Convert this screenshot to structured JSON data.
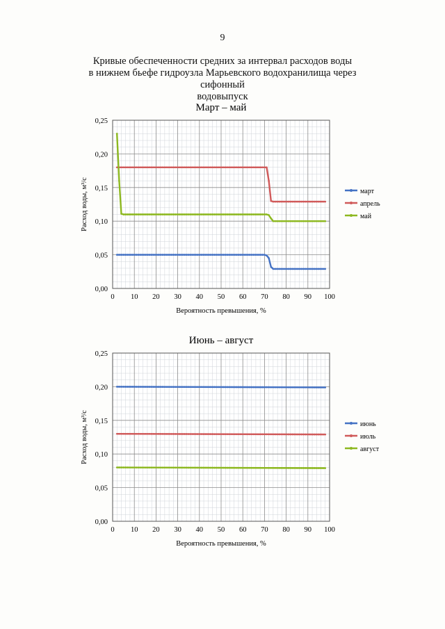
{
  "page_number": "9",
  "document_title": {
    "line1": "Кривые обеспеченности средних за интервал расходов воды",
    "line2": "в нижнем бьефе гидроузла Марьевского водохранилища через сифонный",
    "line3": "водовыпуск"
  },
  "chart_data": [
    {
      "type": "line",
      "title": "Март – май",
      "xlabel": "Вероятность превышения, %",
      "ylabel": "Расход воды, м³/с",
      "xlim": [
        0,
        100
      ],
      "ylim": [
        0,
        0.25
      ],
      "xticks": [
        "0",
        "10",
        "20",
        "30",
        "40",
        "50",
        "60",
        "70",
        "80",
        "90",
        "100"
      ],
      "yticks": [
        "0,00",
        "0,05",
        "0,10",
        "0,15",
        "0,20",
        "0,25"
      ],
      "grid": true,
      "legend_position": "right",
      "series": [
        {
          "name": "март",
          "color": "#4472c4",
          "points": [
            [
              2,
              0.05
            ],
            [
              70,
              0.05
            ],
            [
              71,
              0.049
            ],
            [
              72,
              0.045
            ],
            [
              73,
              0.032
            ],
            [
              74,
              0.029
            ],
            [
              98,
              0.029
            ]
          ]
        },
        {
          "name": "апрель",
          "color": "#d05a5a",
          "points": [
            [
              2,
              0.18
            ],
            [
              71,
              0.18
            ],
            [
              72,
              0.16
            ],
            [
              73,
              0.13
            ],
            [
              74,
              0.129
            ],
            [
              98,
              0.129
            ]
          ]
        },
        {
          "name": "май",
          "color": "#8db820",
          "points": [
            [
              2,
              0.23
            ],
            [
              3,
              0.16
            ],
            [
              4,
              0.111
            ],
            [
              5,
              0.11
            ],
            [
              71,
              0.11
            ],
            [
              72,
              0.109
            ],
            [
              73,
              0.104
            ],
            [
              74,
              0.1
            ],
            [
              98,
              0.1
            ]
          ]
        }
      ]
    },
    {
      "type": "line",
      "title": "Июнь – август",
      "xlabel": "Вероятность превышения, %",
      "ylabel": "Расход воды, м³/с",
      "xlim": [
        0,
        100
      ],
      "ylim": [
        0,
        0.25
      ],
      "xticks": [
        "0",
        "10",
        "20",
        "30",
        "40",
        "50",
        "60",
        "70",
        "80",
        "90",
        "100"
      ],
      "yticks": [
        "0,00",
        "0,05",
        "0,10",
        "0,15",
        "0,20",
        "0,25"
      ],
      "grid": true,
      "legend_position": "right",
      "series": [
        {
          "name": "июнь",
          "color": "#4472c4",
          "points": [
            [
              2,
              0.2
            ],
            [
              98,
              0.199
            ]
          ]
        },
        {
          "name": "июль",
          "color": "#d05a5a",
          "points": [
            [
              2,
              0.13
            ],
            [
              98,
              0.129
            ]
          ]
        },
        {
          "name": "август",
          "color": "#8db820",
          "points": [
            [
              2,
              0.08
            ],
            [
              98,
              0.079
            ]
          ]
        }
      ]
    }
  ]
}
